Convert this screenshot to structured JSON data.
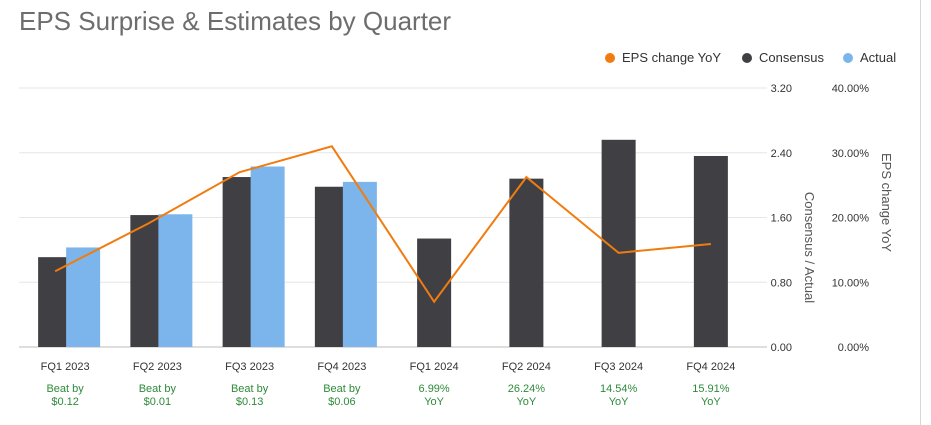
{
  "title": "EPS Surprise & Estimates by Quarter",
  "colors": {
    "consensus": "#3f3f44",
    "actual": "#7cb5ec",
    "yoy_line": "#f07c10",
    "sub_label": "#2e8b3a",
    "grid": "#e6e6e6"
  },
  "legend": [
    "EPS change YoY",
    "Consensus",
    "Actual"
  ],
  "bottom_labels": [
    [
      "Beat by",
      "$0.12"
    ],
    [
      "Beat by",
      "$0.01"
    ],
    [
      "Beat by",
      "$0.13"
    ],
    [
      "Beat by",
      "$0.06"
    ],
    [
      "6.99%",
      "YoY"
    ],
    [
      "26.24%",
      "YoY"
    ],
    [
      "14.54%",
      "YoY"
    ],
    [
      "15.91%",
      "YoY"
    ]
  ],
  "chart_data": {
    "type": "bar",
    "categories": [
      "FQ1 2023",
      "FQ2 2023",
      "FQ3 2023",
      "FQ4 2023",
      "FQ1 2024",
      "FQ2 2024",
      "FQ3 2024",
      "FQ4 2024"
    ],
    "series": [
      {
        "name": "Consensus",
        "type": "bar",
        "axis": "left",
        "values": [
          1.11,
          1.63,
          2.1,
          1.98,
          1.34,
          2.08,
          2.56,
          2.36
        ]
      },
      {
        "name": "Actual",
        "type": "bar",
        "axis": "left",
        "values": [
          1.23,
          1.64,
          2.23,
          2.04,
          null,
          null,
          null,
          null
        ]
      },
      {
        "name": "EPS change YoY",
        "type": "line",
        "axis": "right",
        "values": [
          0.117,
          0.19,
          0.27,
          0.31,
          0.0699,
          0.2624,
          0.1454,
          0.1591
        ]
      }
    ],
    "ylabel": "Consensus / Actual",
    "y2label": "EPS change YoY",
    "ylim": [
      0,
      3.2
    ],
    "y2lim": [
      0,
      0.4
    ],
    "yticks": [
      "0.00",
      "0.80",
      "1.60",
      "2.40",
      "3.20"
    ],
    "y2ticks": [
      "0.00%",
      "10.00%",
      "20.00%",
      "30.00%",
      "40.00%"
    ],
    "grid": true,
    "legend_position": "top-right"
  }
}
